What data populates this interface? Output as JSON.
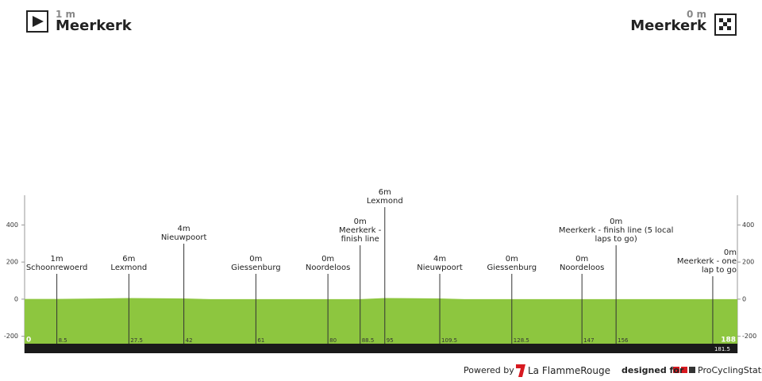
{
  "header": {
    "start": {
      "elevation": "1 m",
      "name": "Meerkerk"
    },
    "finish": {
      "elevation": "0 m",
      "name": "Meerkerk"
    }
  },
  "chart_data": {
    "type": "area",
    "color": "#8dc63f",
    "x": [
      0,
      8.5,
      27.5,
      42,
      49,
      61,
      80,
      88.5,
      95,
      109.5,
      116,
      128.5,
      147,
      156,
      181.5,
      188
    ],
    "values": [
      1,
      1,
      6,
      4,
      0,
      0,
      0,
      0,
      6,
      4,
      0,
      0,
      0,
      0,
      0,
      0
    ],
    "xlim": [
      0,
      188
    ],
    "ylim": [
      -240,
      560
    ],
    "yticks": [
      -200,
      0,
      200,
      400
    ],
    "waypoints": {
      "km": [
        8.5,
        27.5,
        42,
        61,
        80,
        88.5,
        95,
        109.5,
        128.5,
        147,
        156,
        181.5
      ],
      "elevation": [
        1,
        6,
        4,
        0,
        0,
        0,
        6,
        4,
        0,
        0,
        0,
        0
      ],
      "elevation_labels": [
        "1m",
        "6m",
        "4m",
        "0m",
        "0m",
        "0m",
        "6m",
        "4m",
        "0m",
        "0m",
        "0m",
        "0m"
      ],
      "names": [
        "Schoonrewoerd",
        "Lexmond",
        "Nieuwpoort",
        "Giessenburg",
        "Noordeloos",
        "Meerkerk - finish line",
        "Lexmond",
        "Nieuwpoort",
        "Giessenburg",
        "Noordeloos",
        "Meerkerk - finish line (5 local laps to go)",
        "Meerkerk - one lap to go"
      ]
    }
  },
  "footer": {
    "powered": "Powered by",
    "brand": "La FlammeRouge",
    "designed": "designed for",
    "site": "ProCyclingStats"
  }
}
